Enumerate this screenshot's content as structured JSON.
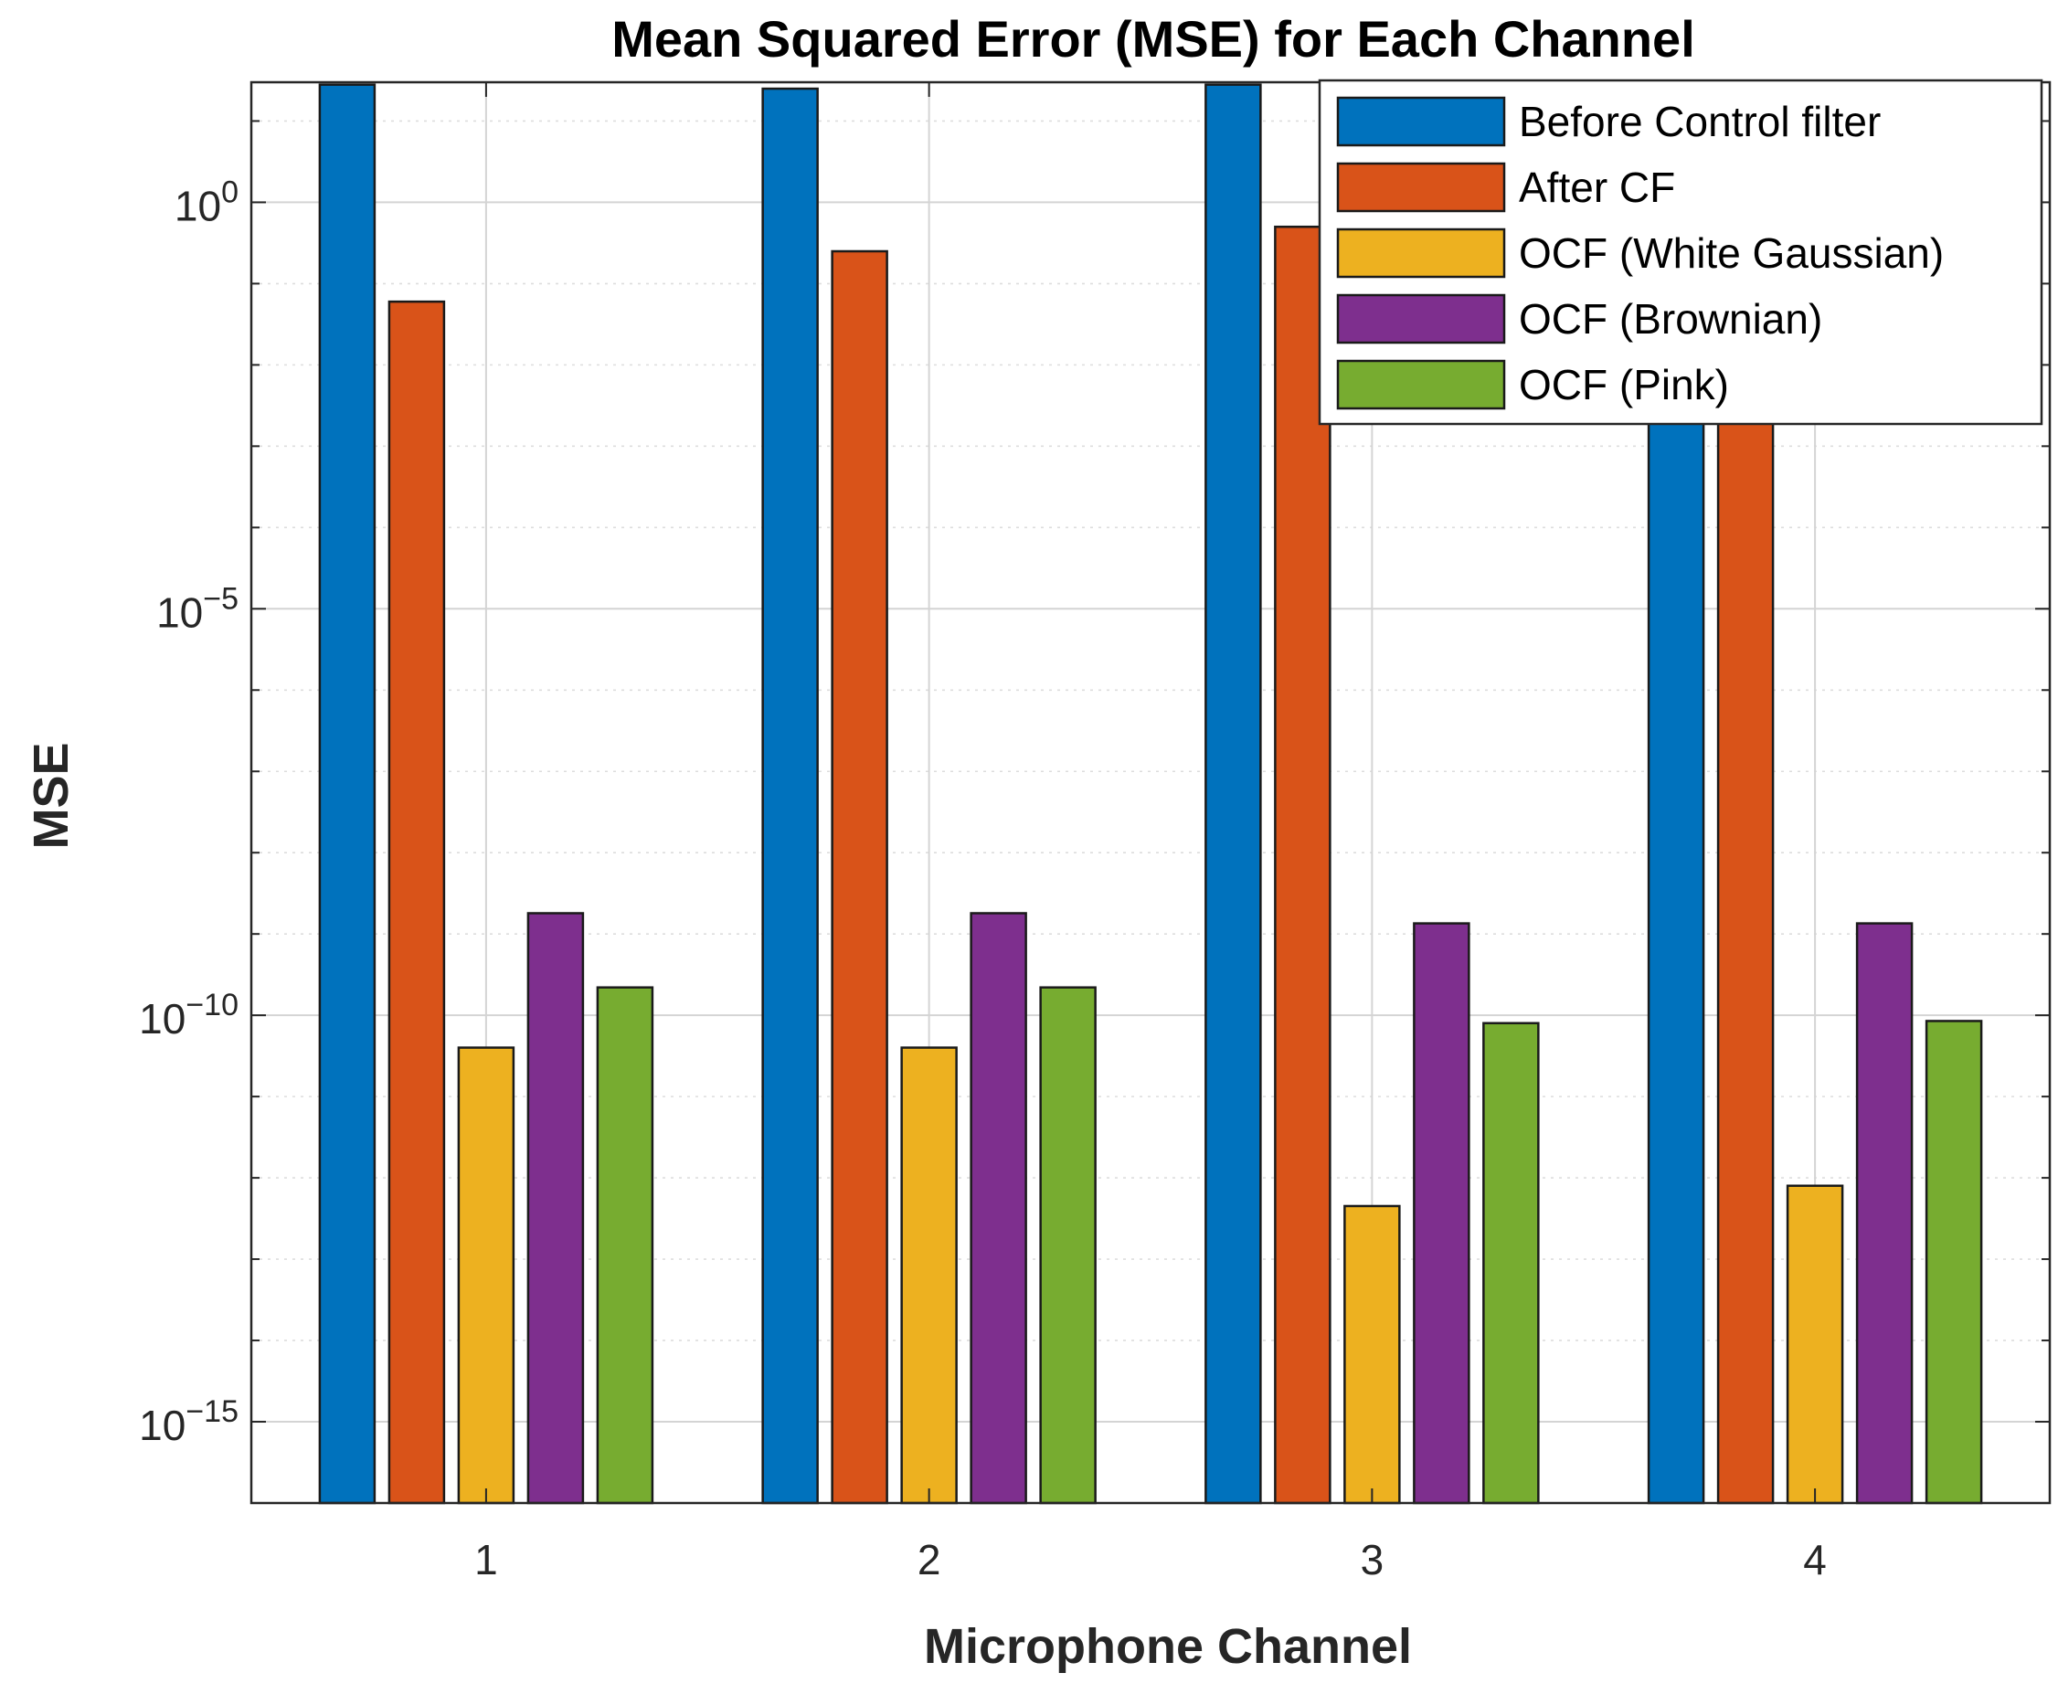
{
  "chart_data": {
    "type": "bar",
    "title": "Mean Squared Error (MSE) for Each Channel",
    "xlabel": "Microphone Channel",
    "ylabel": "MSE",
    "y_scale": "log",
    "ylim": [
      1e-16,
      30
    ],
    "y_ticks": [
      {
        "value": 1,
        "base": "10",
        "exp": "0"
      },
      {
        "value": 1e-05,
        "base": "10",
        "exp": "−5"
      },
      {
        "value": 1e-10,
        "base": "10",
        "exp": "−10"
      },
      {
        "value": 1e-15,
        "base": "10",
        "exp": "−15"
      }
    ],
    "categories": [
      "1",
      "2",
      "3",
      "4"
    ],
    "series": [
      {
        "name": "Before Control filter",
        "color": "#0072BD",
        "values": [
          28,
          25,
          28,
          0.05
        ]
      },
      {
        "name": "After CF",
        "color": "#D95319",
        "values": [
          0.06,
          0.25,
          0.5,
          0.05
        ]
      },
      {
        "name": "OCF (White Gaussian)",
        "color": "#EDB120",
        "values": [
          4e-11,
          4e-11,
          4.5e-13,
          8e-13
        ]
      },
      {
        "name": "OCF (Brownian)",
        "color": "#7E2F8E",
        "values": [
          1.8e-09,
          1.8e-09,
          1.35e-09,
          1.35e-09
        ]
      },
      {
        "name": "OCF (Pink)",
        "color": "#77AC30",
        "values": [
          2.2e-10,
          2.2e-10,
          8e-11,
          8.5e-11
        ]
      }
    ],
    "grid": true,
    "legend_position": "top-right"
  }
}
